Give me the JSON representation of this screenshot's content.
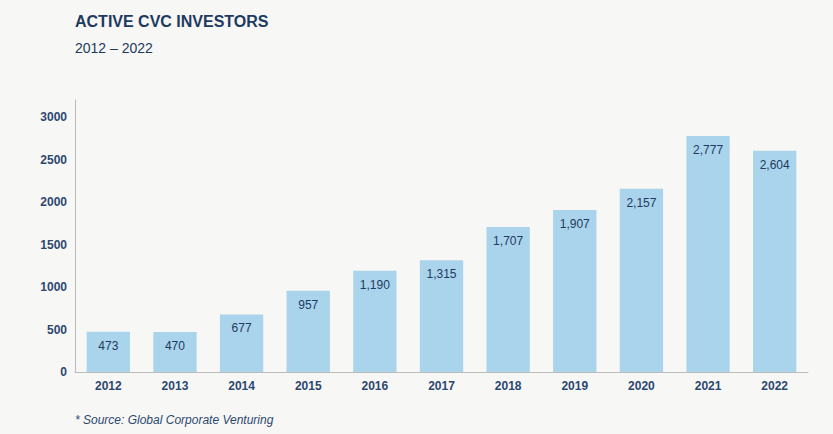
{
  "chart_data": {
    "type": "bar",
    "title": "ACTIVE CVC INVESTORS",
    "subtitle": "2012 – 2022",
    "annotations": [
      "* Source: Global Corporate Venturing"
    ],
    "categories": [
      "2012",
      "2013",
      "2014",
      "2015",
      "2016",
      "2017",
      "2018",
      "2019",
      "2020",
      "2021",
      "2022"
    ],
    "values": [
      473,
      470,
      677,
      957,
      1190,
      1315,
      1707,
      1907,
      2157,
      2777,
      2604
    ],
    "value_labels": [
      "473",
      "470",
      "677",
      "957",
      "1,190",
      "1,315",
      "1,707",
      "1,907",
      "2,157",
      "2,777",
      "2,604"
    ],
    "color": "#aad4ec",
    "ylim": [
      0,
      3200
    ],
    "yticks": [
      0,
      500,
      1000,
      1500,
      2000,
      2500,
      3000
    ],
    "grid": false,
    "data_labels": true
  }
}
